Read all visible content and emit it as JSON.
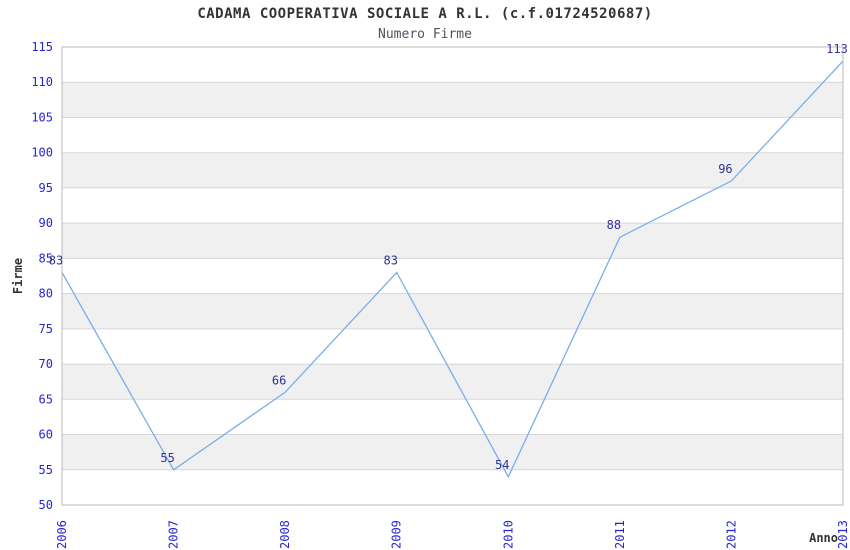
{
  "chart_data": {
    "type": "line",
    "title": "CADAMA COOPERATIVA SOCIALE A R.L. (c.f.01724520687)",
    "subtitle": "Numero Firme",
    "xlabel": "Anno",
    "ylabel": "Firme",
    "categories": [
      "2006",
      "2007",
      "2008",
      "2009",
      "2010",
      "2011",
      "2012",
      "2013"
    ],
    "values": [
      83,
      55,
      66,
      83,
      54,
      88,
      96,
      113
    ],
    "ylim": [
      50,
      115
    ],
    "ytick_step": 5,
    "grid": true,
    "banded_rows": true,
    "legend_position": "none",
    "colors": {
      "line": "#7aaee8",
      "tick_label": "#2626cf",
      "point_label": "#32329b",
      "title": "#333333",
      "subtitle": "#52525e",
      "axis_label": "#333333",
      "band": "#f0f0f0",
      "gridline": "#d8d8d8",
      "frame": "#bbbbbb",
      "background": "#ffffff"
    }
  }
}
